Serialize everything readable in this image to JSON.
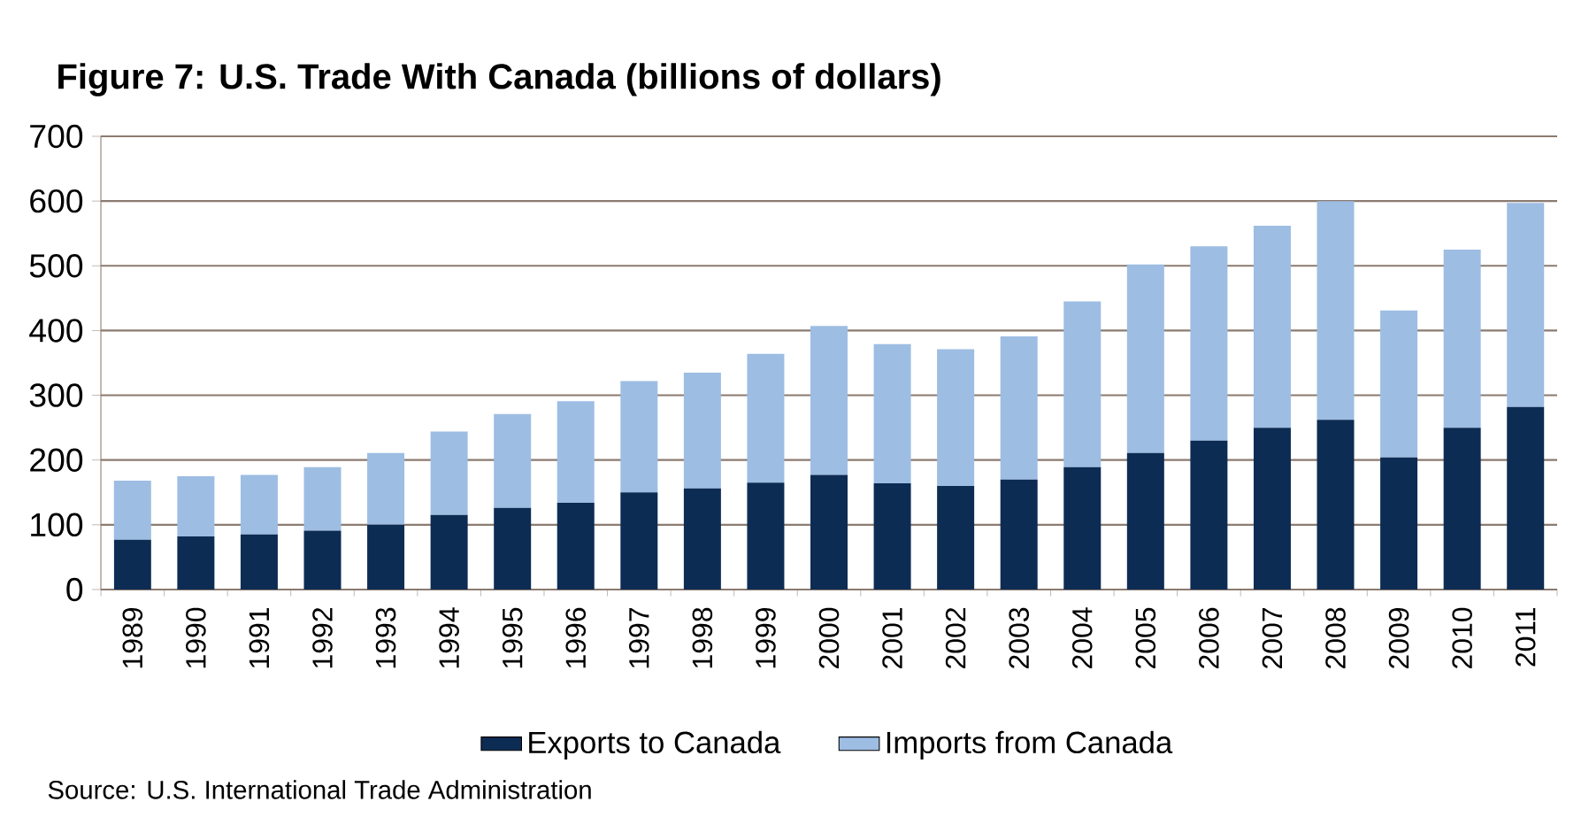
{
  "chart_data": {
    "type": "bar",
    "stacked": true,
    "title": "Figure 7:  U.S. Trade With Canada (billions of dollars)",
    "categories": [
      "1989",
      "1990",
      "1991",
      "1992",
      "1993",
      "1994",
      "1995",
      "1996",
      "1997",
      "1998",
      "1999",
      "2000",
      "2001",
      "2002",
      "2003",
      "2004",
      "2005",
      "2006",
      "2007",
      "2008",
      "2009",
      "2010",
      "2011"
    ],
    "series": [
      {
        "name": "Exports to Canada",
        "color": "#0d2c54",
        "values": [
          77,
          82,
          85,
          91,
          100,
          115,
          126,
          134,
          150,
          156,
          165,
          177,
          164,
          160,
          170,
          189,
          211,
          230,
          250,
          262,
          204,
          250,
          282
        ]
      },
      {
        "name": "Imports from Canada",
        "color": "#9dbde3",
        "values": [
          91,
          93,
          92,
          98,
          111,
          129,
          145,
          157,
          172,
          179,
          199,
          230,
          215,
          211,
          221,
          256,
          291,
          300,
          312,
          338,
          227,
          275,
          315
        ]
      }
    ],
    "ylim": [
      0,
      700
    ],
    "yticks": [
      0,
      100,
      200,
      300,
      400,
      500,
      600,
      700
    ],
    "grid": "y",
    "legend": "bottom",
    "annotations": [
      "Source:  U.S. International Trade Administration"
    ]
  }
}
